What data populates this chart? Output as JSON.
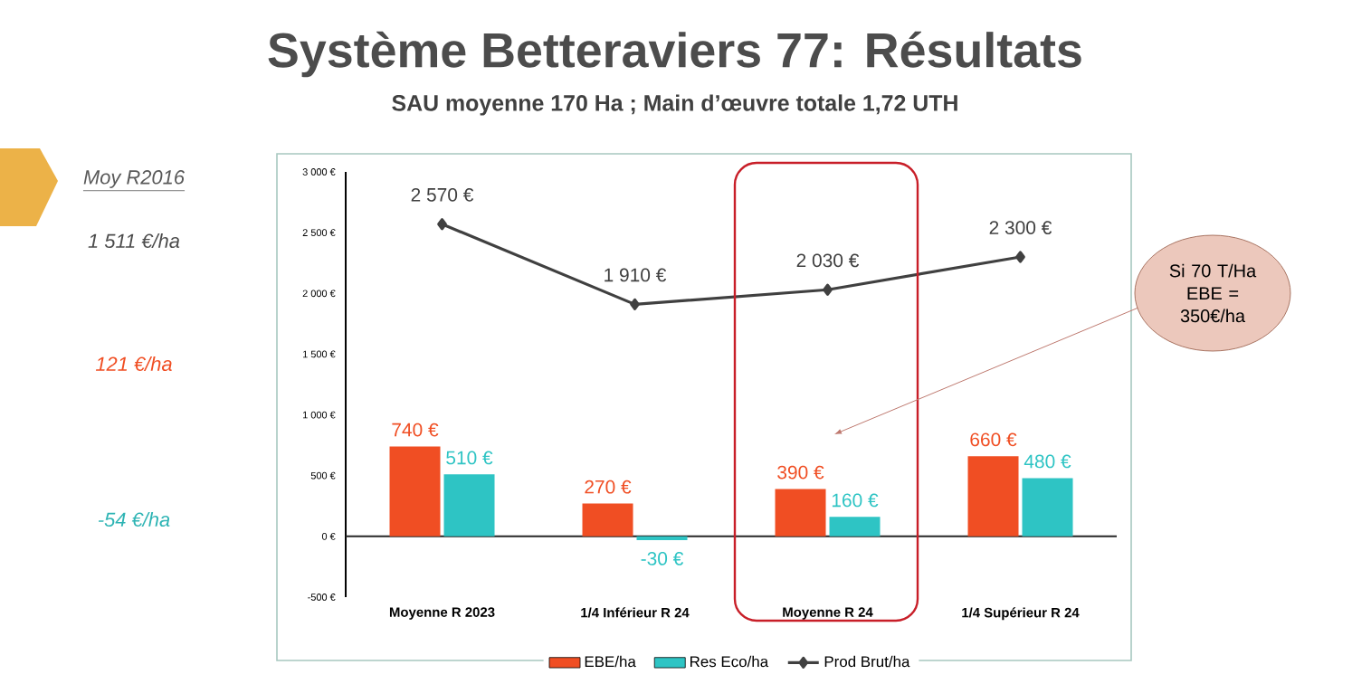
{
  "chart_data": {
    "type": "bar",
    "title": "Système Betteraviers 77: Résultats",
    "subtitle": "SAU moyenne 170 Ha ; Main d’œuvre totale 1,72 UTH",
    "categories": [
      "Moyenne R 2023",
      "1/4 Inférieur R 24",
      "Moyenne R 24",
      "1/4 Supérieur R 24"
    ],
    "series": [
      {
        "name": "EBE/ha",
        "color": "#f04e23",
        "values": [
          740,
          270,
          390,
          660
        ],
        "value_labels": [
          "740 €",
          "270 €",
          "390 €",
          "660 €"
        ]
      },
      {
        "name": "Res Eco/ha",
        "color": "#2ec4c4",
        "values": [
          510,
          -30,
          160,
          480
        ],
        "value_labels": [
          "510 €",
          "-30 €",
          "160 €",
          "480 €"
        ]
      },
      {
        "name": "Prod Brut/ha",
        "type": "line",
        "marker": "diamond",
        "color": "#404040",
        "values": [
          2570,
          1910,
          2030,
          2300
        ],
        "value_labels": [
          "2 570 €",
          "1 910 €",
          "2 030 €",
          "2 300 €"
        ]
      }
    ],
    "ylim": [
      -500,
      3000
    ],
    "yticks": [
      {
        "value": -500,
        "label": "-500 €"
      },
      {
        "value": 0,
        "label": "0 €"
      },
      {
        "value": 500,
        "label": "500 €"
      },
      {
        "value": 1000,
        "label": "1 000 €"
      },
      {
        "value": 1500,
        "label": "1 500 €"
      },
      {
        "value": 2000,
        "label": "2 000 €"
      },
      {
        "value": 2500,
        "label": "2 500 €"
      },
      {
        "value": 3000,
        "label": "3 000 €"
      }
    ],
    "legend": "bottom",
    "annotations": [
      "Moy R2016",
      "1 511 €/ha",
      "121 €/ha",
      "-54 €/ha",
      "Si 70 T/Ha EBE = 350€/ha"
    ]
  }
}
